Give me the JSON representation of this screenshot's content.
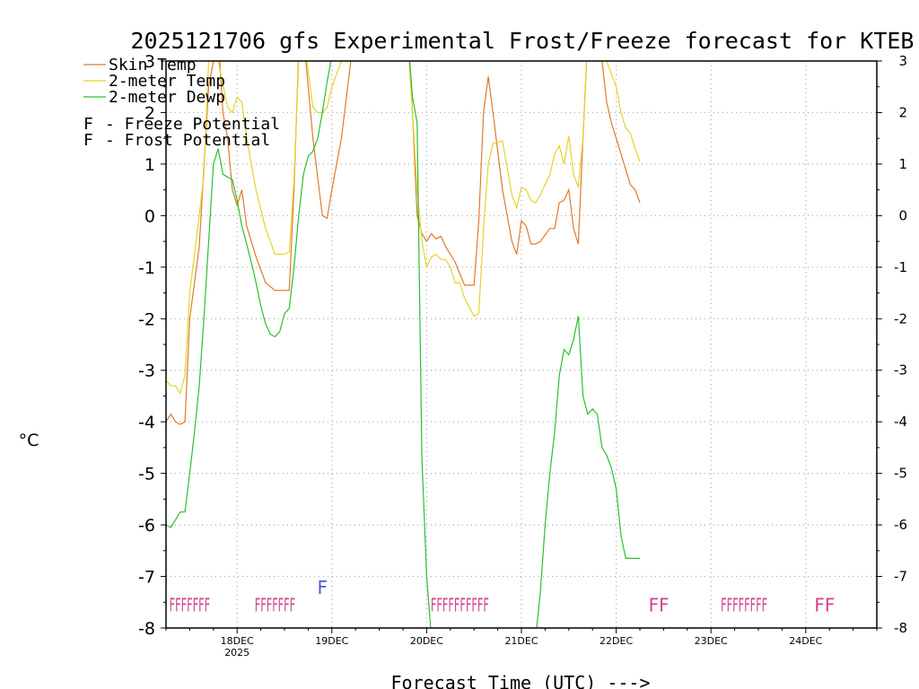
{
  "chart_data": {
    "type": "line",
    "title": "2025121706 gfs Experimental Frost/Freeze forecast for KTEB",
    "xlabel": "Forecast Time (UTC) --->",
    "ylabel": "°C",
    "ylim": [
      -8,
      3
    ],
    "xlim": [
      17.25,
      24.75
    ],
    "y_ticks": [
      -8,
      -7,
      -6,
      -5,
      -4,
      -3,
      -2,
      -1,
      0,
      1,
      2,
      3
    ],
    "x_ticks": [
      {
        "x": 18,
        "label": "18DEC",
        "sub": "2025"
      },
      {
        "x": 19,
        "label": "19DEC",
        "sub": ""
      },
      {
        "x": 20,
        "label": "20DEC",
        "sub": ""
      },
      {
        "x": 21,
        "label": "21DEC",
        "sub": ""
      },
      {
        "x": 22,
        "label": "22DEC",
        "sub": ""
      },
      {
        "x": 23,
        "label": "23DEC",
        "sub": ""
      },
      {
        "x": 24,
        "label": "24DEC",
        "sub": ""
      }
    ],
    "grid": true,
    "legend": {
      "position": "top-left",
      "series_entries": [
        "Skin Temp",
        "2-meter Temp",
        "2-meter Dewp"
      ],
      "symbol": "F",
      "freeze_label": "- Freeze Potential",
      "frost_label": "- Frost Potential"
    },
    "series": [
      {
        "name": "Skin Temp",
        "color": "#e07a2a",
        "x": [
          17.25,
          17.3,
          17.35,
          17.4,
          17.45,
          17.5,
          17.6,
          17.7,
          17.8,
          17.85,
          17.9,
          17.95,
          18.0,
          18.05,
          18.1,
          18.2,
          18.3,
          18.4,
          18.5,
          18.55,
          18.6,
          18.65,
          18.7,
          18.8,
          18.9,
          18.95,
          19.0,
          19.1,
          19.2,
          19.3,
          19.8,
          19.85,
          19.9,
          19.95,
          20.0,
          20.05,
          20.1,
          20.15,
          20.2,
          20.25,
          20.3,
          20.4,
          20.45,
          20.5,
          20.55,
          20.6,
          20.65,
          20.7,
          20.8,
          20.9,
          20.95,
          21.0,
          21.05,
          21.1,
          21.15,
          21.2,
          21.3,
          21.35,
          21.4,
          21.45,
          21.5,
          21.55,
          21.6,
          21.65,
          21.7,
          21.75,
          21.8,
          21.85,
          21.9,
          21.95,
          22.0,
          22.05,
          22.1,
          22.15,
          22.2,
          22.25
        ],
        "values": [
          -4.0,
          -3.85,
          -4.0,
          -4.05,
          -4.0,
          -2.0,
          -0.6,
          2.5,
          3.5,
          2.0,
          1.5,
          0.5,
          0.2,
          0.5,
          -0.2,
          -0.8,
          -1.3,
          -1.45,
          -1.45,
          -1.45,
          0.5,
          3.2,
          3.5,
          1.5,
          0.0,
          -0.05,
          0.5,
          1.5,
          3.0,
          3.5,
          3.5,
          2.0,
          0.0,
          -0.35,
          -0.5,
          -0.35,
          -0.45,
          -0.4,
          -0.6,
          -0.75,
          -0.9,
          -1.35,
          -1.35,
          -1.35,
          -0.1,
          2.0,
          2.7,
          2.0,
          0.5,
          -0.5,
          -0.75,
          -0.1,
          -0.2,
          -0.55,
          -0.55,
          -0.5,
          -0.25,
          -0.25,
          0.25,
          0.3,
          0.5,
          -0.25,
          -0.55,
          1.5,
          3.5,
          3.5,
          3.5,
          3.0,
          2.2,
          1.8,
          1.5,
          1.2,
          0.9,
          0.6,
          0.5,
          0.25
        ]
      },
      {
        "name": "2-meter Temp",
        "color": "#e6d22e",
        "x": [
          17.25,
          17.3,
          17.35,
          17.4,
          17.45,
          17.5,
          17.6,
          17.65,
          17.7,
          17.75,
          17.8,
          17.9,
          17.95,
          18.0,
          18.05,
          18.1,
          18.2,
          18.3,
          18.35,
          18.4,
          18.5,
          18.55,
          18.6,
          18.65,
          18.7,
          18.8,
          18.85,
          18.9,
          18.95,
          19.0,
          19.1,
          19.2,
          19.8,
          19.85,
          19.9,
          19.95,
          20.0,
          20.05,
          20.1,
          20.15,
          20.2,
          20.25,
          20.3,
          20.35,
          20.4,
          20.5,
          20.55,
          20.6,
          20.65,
          20.7,
          20.8,
          20.9,
          20.95,
          21.0,
          21.05,
          21.1,
          21.15,
          21.2,
          21.3,
          21.35,
          21.4,
          21.45,
          21.5,
          21.55,
          21.6,
          21.65,
          21.7,
          21.8,
          21.85,
          21.9,
          22.0,
          22.05,
          22.1,
          22.15,
          22.2,
          22.25
        ],
        "values": [
          -3.2,
          -3.3,
          -3.3,
          -3.45,
          -3.1,
          -1.5,
          0.0,
          0.8,
          3.0,
          3.0,
          3.0,
          2.1,
          2.0,
          2.3,
          2.2,
          1.5,
          0.5,
          -0.25,
          -0.5,
          -0.75,
          -0.75,
          -0.7,
          0.7,
          3.0,
          3.5,
          2.1,
          2.0,
          2.0,
          2.1,
          2.5,
          3.0,
          3.5,
          3.5,
          2.0,
          0.5,
          -0.5,
          -1.0,
          -0.8,
          -0.75,
          -0.85,
          -0.85,
          -1.0,
          -1.3,
          -1.3,
          -1.6,
          -1.95,
          -1.9,
          -0.25,
          1.0,
          1.4,
          1.45,
          0.4,
          0.15,
          0.55,
          0.5,
          0.3,
          0.25,
          0.4,
          0.8,
          1.2,
          1.35,
          1.0,
          1.55,
          0.8,
          0.55,
          1.5,
          3.5,
          3.5,
          3.5,
          3.0,
          2.5,
          2.0,
          1.7,
          1.6,
          1.3,
          1.05
        ]
      },
      {
        "name": "2-meter Dewp",
        "color": "#2bbf2b",
        "x": [
          17.25,
          17.3,
          17.35,
          17.4,
          17.45,
          17.5,
          17.55,
          17.6,
          17.65,
          17.7,
          17.75,
          17.8,
          17.85,
          17.9,
          17.95,
          18.0,
          18.05,
          18.1,
          18.15,
          18.2,
          18.25,
          18.3,
          18.35,
          18.4,
          18.45,
          18.5,
          18.55,
          18.6,
          18.65,
          18.7,
          18.75,
          18.8,
          18.85,
          18.9,
          18.95,
          19.0,
          19.05,
          19.1,
          19.8,
          19.85,
          19.9,
          19.95,
          20.0,
          20.05,
          21.15,
          21.2,
          21.25,
          21.3,
          21.35,
          21.4,
          21.45,
          21.5,
          21.55,
          21.6,
          21.65,
          21.7,
          21.75,
          21.8,
          21.85,
          21.9,
          21.95,
          22.0,
          22.05,
          22.1,
          22.15,
          22.2,
          22.25
        ],
        "values": [
          -6.0,
          -6.05,
          -5.9,
          -5.75,
          -5.75,
          -5.0,
          -4.2,
          -3.3,
          -2.0,
          -0.5,
          1.0,
          1.3,
          0.8,
          0.75,
          0.7,
          0.3,
          -0.2,
          -0.55,
          -0.9,
          -1.3,
          -1.75,
          -2.1,
          -2.3,
          -2.35,
          -2.25,
          -1.9,
          -1.8,
          -1.0,
          0.0,
          0.8,
          1.15,
          1.25,
          1.5,
          2.0,
          2.6,
          3.1,
          3.5,
          3.5,
          3.5,
          2.3,
          1.8,
          -4.7,
          -7.0,
          -8.2,
          -8.2,
          -7.3,
          -6.0,
          -5.0,
          -4.2,
          -3.1,
          -2.6,
          -2.7,
          -2.4,
          -1.95,
          -3.5,
          -3.85,
          -3.75,
          -3.85,
          -4.5,
          -4.65,
          -4.9,
          -5.3,
          -6.2,
          -6.65,
          -6.65,
          -6.65,
          -6.65
        ]
      }
    ],
    "freeze_flags": [
      {
        "x": 17.5,
        "text": "FFFFFFF"
      },
      {
        "x": 18.4,
        "text": "FFFFFFF"
      },
      {
        "x": 20.35,
        "text": "FFFFFFFFFF"
      },
      {
        "x": 22.45,
        "text": "FF"
      },
      {
        "x": 23.35,
        "text": "FFFFFFFF"
      },
      {
        "x": 24.2,
        "text": "FF"
      }
    ],
    "frost_flags": [
      {
        "x": 18.9,
        "text": "F"
      }
    ],
    "freeze_color": "#d53f8c",
    "frost_color": "#4a5ed8"
  }
}
